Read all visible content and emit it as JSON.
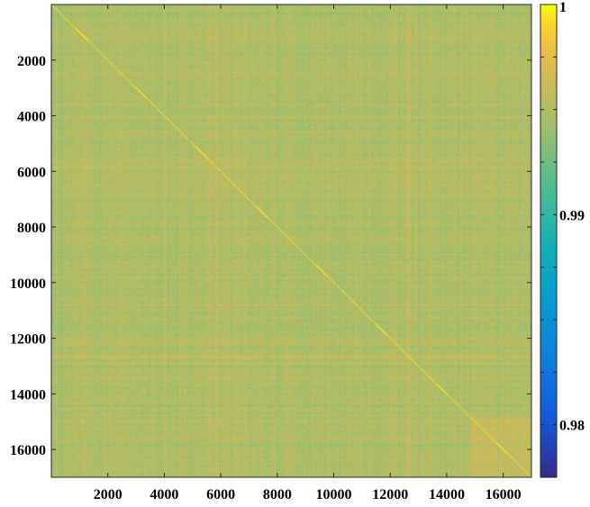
{
  "chart_data": {
    "type": "heatmap",
    "title": "",
    "xlabel": "",
    "ylabel": "",
    "matrix_size": 17000,
    "xlim": [
      0,
      17000
    ],
    "ylim": [
      0,
      17000
    ],
    "y_axis_reversed": true,
    "x_ticks": [
      {
        "value": 2000,
        "label": "2000"
      },
      {
        "value": 4000,
        "label": "4000"
      },
      {
        "value": 6000,
        "label": "6000"
      },
      {
        "value": 8000,
        "label": "8000"
      },
      {
        "value": 10000,
        "label": "10000"
      },
      {
        "value": 12000,
        "label": "12000"
      },
      {
        "value": 14000,
        "label": "14000"
      },
      {
        "value": 16000,
        "label": "16000"
      }
    ],
    "y_ticks": [
      {
        "value": 2000,
        "label": "2000"
      },
      {
        "value": 4000,
        "label": "4000"
      },
      {
        "value": 6000,
        "label": "6000"
      },
      {
        "value": 8000,
        "label": "8000"
      },
      {
        "value": 10000,
        "label": "10000"
      },
      {
        "value": 12000,
        "label": "12000"
      },
      {
        "value": 14000,
        "label": "14000"
      },
      {
        "value": 16000,
        "label": "16000"
      }
    ],
    "colorbar": {
      "colormap": "parula",
      "range": [
        0.9775,
        1.0
      ],
      "tick_values": [
        0.98,
        0.9825,
        0.985,
        0.9875,
        0.99,
        0.9925,
        0.995,
        0.9975,
        1.0
      ],
      "labels": [
        {
          "value": 1.0,
          "label": "1"
        },
        {
          "value": 0.99,
          "label": "0.99"
        },
        {
          "value": 0.98,
          "label": "0.98"
        }
      ]
    },
    "value_summary": {
      "diagonal": 1.0,
      "typical_off_diagonal": 0.995,
      "lower_band": 0.9925,
      "upper_band": 0.9975
    },
    "grid": false,
    "legend": "colorbar-right"
  }
}
